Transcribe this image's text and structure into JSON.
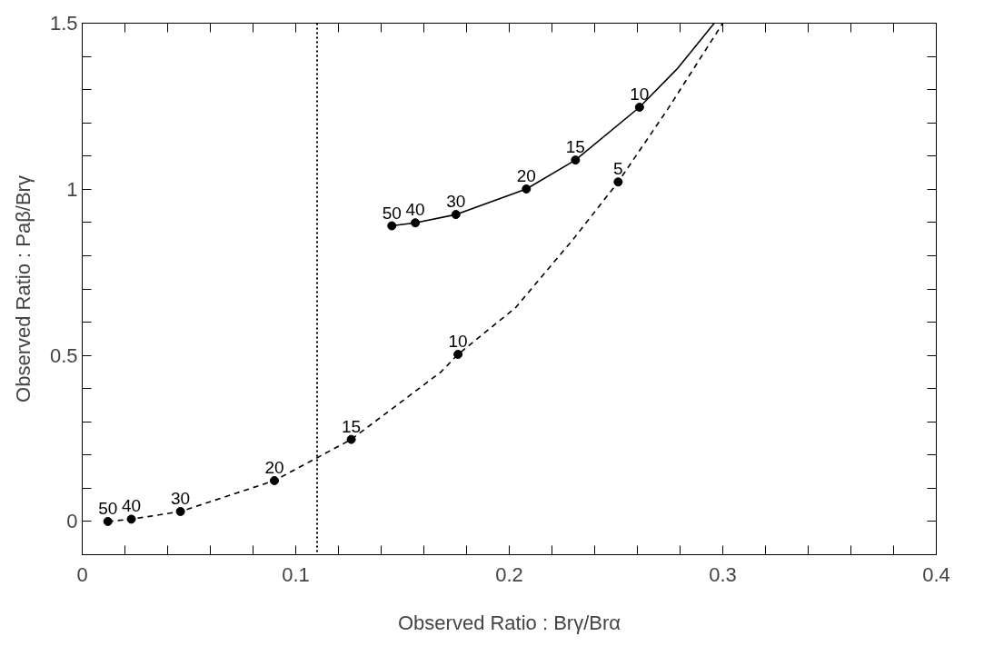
{
  "chart_data": {
    "type": "line",
    "xlabel": "Observed Ratio : Brγ/Brα",
    "ylabel": "Observed Ratio : Paβ/Brγ",
    "xlim": [
      0,
      0.4
    ],
    "ylim": [
      -0.1,
      1.5
    ],
    "xticks": [
      0,
      {
        "value": 0.02,
        "label": null
      },
      {
        "value": 0.04,
        "label": null
      },
      {
        "value": 0.06,
        "label": null
      },
      {
        "value": 0.08,
        "label": null
      },
      0.1,
      {
        "value": 0.12,
        "label": null
      },
      {
        "value": 0.14,
        "label": null
      },
      {
        "value": 0.16,
        "label": null
      },
      {
        "value": 0.18,
        "label": null
      },
      0.2,
      {
        "value": 0.22,
        "label": null
      },
      {
        "value": 0.24,
        "label": null
      },
      {
        "value": 0.26,
        "label": null
      },
      {
        "value": 0.28,
        "label": null
      },
      0.3,
      {
        "value": 0.32,
        "label": null
      },
      {
        "value": 0.34,
        "label": null
      },
      {
        "value": 0.36,
        "label": null
      },
      {
        "value": 0.38,
        "label": null
      },
      0.4
    ],
    "yticks": [
      0,
      {
        "value": 0.1,
        "label": null
      },
      {
        "value": 0.2,
        "label": null
      },
      {
        "value": 0.3,
        "label": null
      },
      {
        "value": 0.4,
        "label": null
      },
      0.5,
      {
        "value": 0.6,
        "label": null
      },
      {
        "value": 0.7,
        "label": null
      },
      {
        "value": 0.8,
        "label": null
      },
      {
        "value": 0.9,
        "label": null
      },
      1,
      {
        "value": 1.1,
        "label": null
      },
      {
        "value": 1.2,
        "label": null
      },
      {
        "value": 1.3,
        "label": null
      },
      {
        "value": 1.4,
        "label": null
      },
      1.5
    ],
    "grid": false,
    "series": [
      {
        "type": "line",
        "color": "#000000",
        "line_style": "dashed",
        "marker": "none",
        "x": [
          0.012,
          0.023,
          0.046,
          0.09,
          0.126,
          0.168,
          0.176,
          0.203,
          0.23,
          0.251,
          0.274,
          0.3
        ],
        "values": [
          0,
          0.007,
          0.03,
          0.123,
          0.247,
          0.45,
          0.503,
          0.644,
          0.85,
          1.022,
          1.239,
          1.5
        ]
      },
      {
        "type": "line",
        "color": "#000000",
        "line_style": "solid",
        "marker": "none",
        "x": [
          0.145,
          0.156,
          0.175,
          0.208,
          0.231,
          0.261,
          0.279,
          0.296
        ],
        "values": [
          0.89,
          0.899,
          0.924,
          1.001,
          1.088,
          1.247,
          1.365,
          1.5
        ]
      },
      {
        "type": "scatter",
        "color": "#000000",
        "marker": "circle",
        "x": [
          0.012,
          0.023,
          0.046,
          0.09,
          0.126,
          0.176,
          0.251
        ],
        "values": [
          0,
          0.007,
          0.03,
          0.123,
          0.247,
          0.503,
          1.022
        ]
      },
      {
        "type": "scatter",
        "color": "#000000",
        "marker": "circle",
        "x": [
          0.145,
          0.156,
          0.175,
          0.208,
          0.231,
          0.261
        ],
        "values": [
          0.89,
          0.899,
          0.924,
          1.001,
          1.088,
          1.247
        ]
      }
    ],
    "ref_lines": [
      {
        "axis": "x",
        "value": 0.11,
        "color": "#000000",
        "line_style": "dotted"
      }
    ],
    "annotations": [
      {
        "text": "50",
        "x": 0.145,
        "y": 0.89
      },
      {
        "text": "40",
        "x": 0.156,
        "y": 0.899
      },
      {
        "text": "30",
        "x": 0.175,
        "y": 0.924
      },
      {
        "text": "20",
        "x": 0.208,
        "y": 1.001
      },
      {
        "text": "15",
        "x": 0.231,
        "y": 1.088
      },
      {
        "text": "10",
        "x": 0.261,
        "y": 1.247
      },
      {
        "text": "50",
        "x": 0.012,
        "y": 0
      },
      {
        "text": "40",
        "x": 0.023,
        "y": 0.007
      },
      {
        "text": "30",
        "x": 0.046,
        "y": 0.03
      },
      {
        "text": "20",
        "x": 0.09,
        "y": 0.123
      },
      {
        "text": "15",
        "x": 0.126,
        "y": 0.247
      },
      {
        "text": "10",
        "x": 0.176,
        "y": 0.503
      },
      {
        "text": "5",
        "x": 0.251,
        "y": 1.022
      }
    ]
  }
}
